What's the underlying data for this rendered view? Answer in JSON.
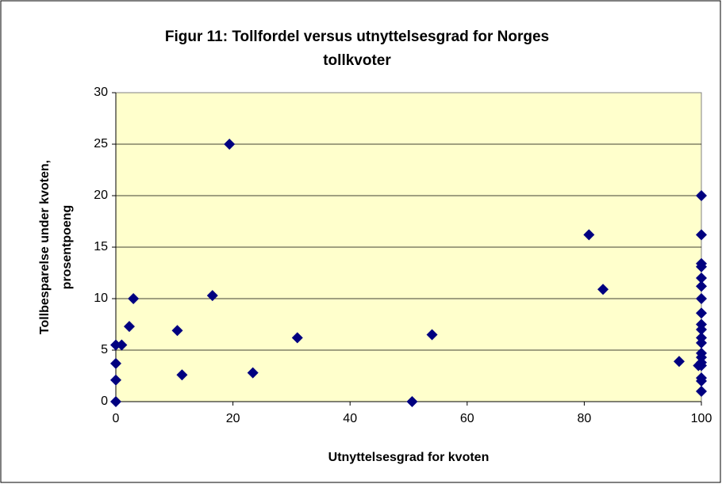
{
  "chart_data": {
    "type": "scatter",
    "title": [
      "Figur 11: Tollfordel versus utnyttelsesgrad for Norges",
      "tollkvoter"
    ],
    "xlabel": "Utnyttelsesgrad for kvoten",
    "ylabel": [
      "Tollbesparelse under kvoten,",
      "prosentpoeng"
    ],
    "x": [
      0,
      0,
      0,
      0,
      1,
      2.3,
      3,
      10.5,
      11.3,
      16.5,
      19.4,
      23.4,
      31,
      50.6,
      54,
      80.8,
      83.2,
      96.2,
      99.5,
      100,
      100,
      100,
      100,
      100,
      100,
      100,
      100,
      100,
      100,
      100,
      100,
      100,
      100,
      100,
      100,
      100,
      100,
      100
    ],
    "values": [
      0,
      2.1,
      3.7,
      5.5,
      5.5,
      7.3,
      10,
      6.9,
      2.6,
      10.3,
      25,
      2.8,
      6.2,
      0,
      6.5,
      16.2,
      10.9,
      3.9,
      3.5,
      20,
      16.2,
      13.4,
      13.1,
      12,
      11.2,
      10,
      8.6,
      7.5,
      7,
      6.2,
      5.7,
      4.7,
      4.3,
      3.8,
      3.5,
      2.3,
      2,
      1
    ],
    "color": "#000080",
    "xlim": [
      0,
      100
    ],
    "xticks": [
      0,
      20,
      40,
      60,
      80,
      100
    ],
    "ylim": [
      0,
      30
    ],
    "yticks": [
      0,
      5,
      10,
      15,
      20,
      25,
      30
    ],
    "grid": true
  }
}
